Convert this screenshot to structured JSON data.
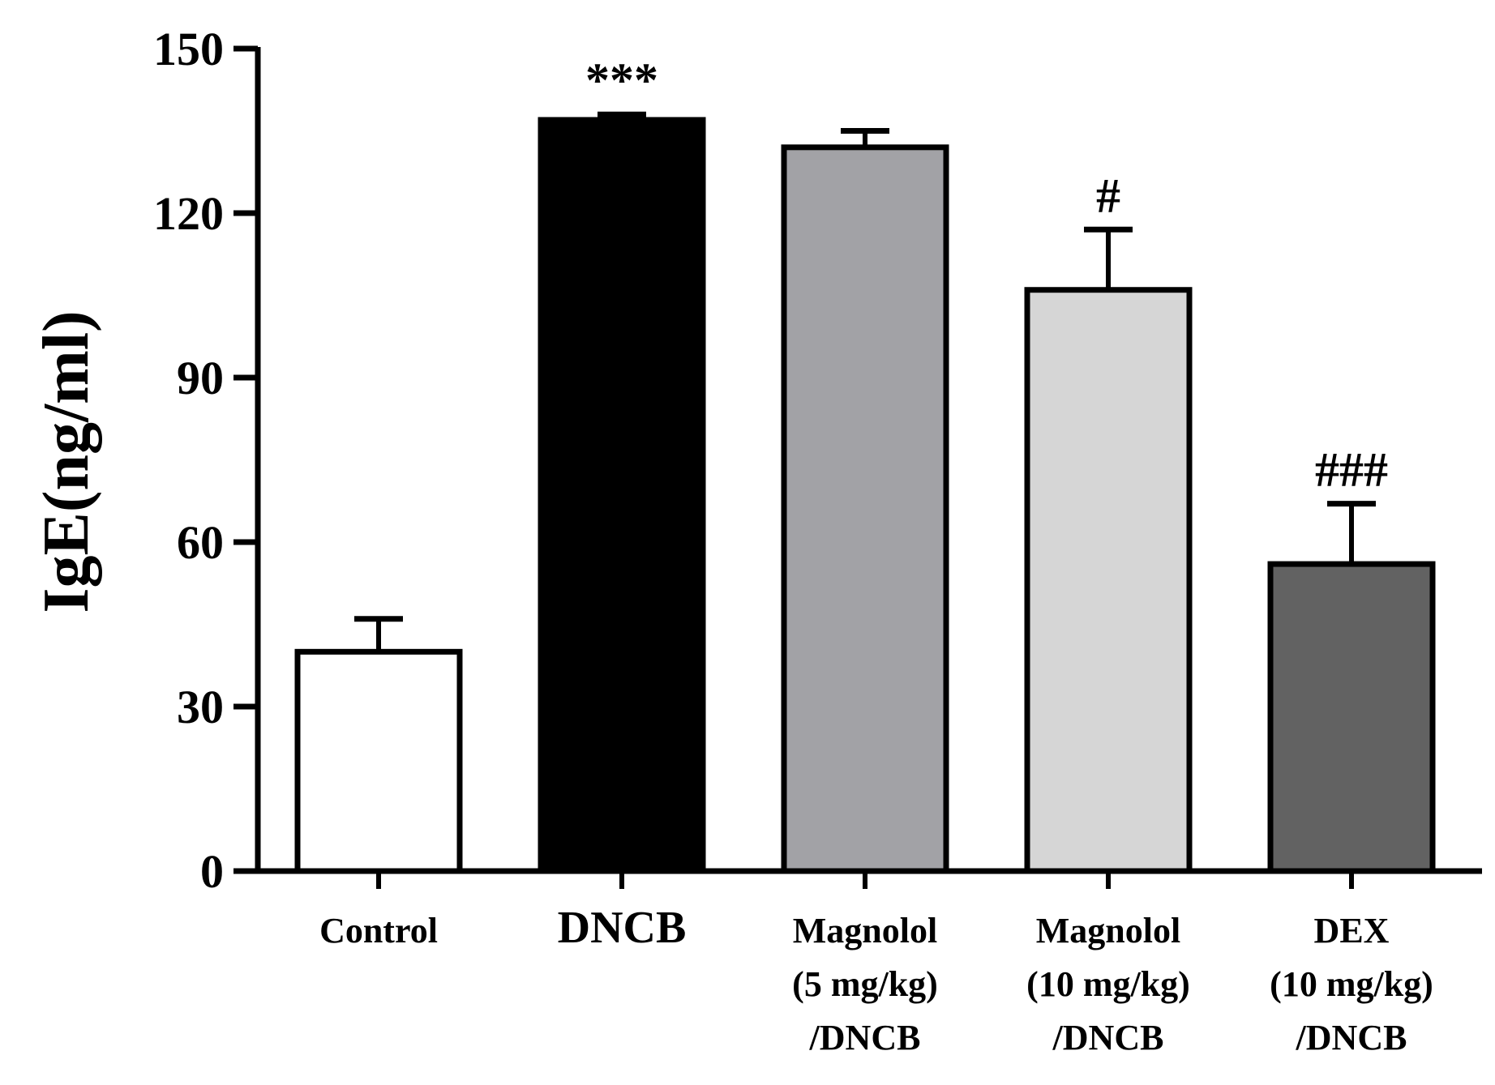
{
  "chart_data": {
    "type": "bar",
    "title": "",
    "xlabel": "",
    "ylabel": "IgE(ng/ml)",
    "ylim": [
      0,
      150
    ],
    "yticks": [
      "0",
      "30",
      "60",
      "90",
      "120",
      "150"
    ],
    "categories": [
      [
        "Control"
      ],
      [
        "DNCB"
      ],
      [
        "Magnolol",
        "(5 mg/kg)",
        "/DNCB"
      ],
      [
        "Magnolol",
        "(10 mg/kg)",
        "/DNCB"
      ],
      [
        "DEX",
        "(10 mg/kg)",
        "/DNCB"
      ]
    ],
    "values": [
      40,
      137,
      132,
      106,
      56
    ],
    "errors": [
      6,
      1,
      3,
      11,
      11
    ],
    "bar_colors": [
      "#ffffff",
      "#000000",
      "#a2a2a6",
      "#d6d6d6",
      "#626262"
    ],
    "annotations": [
      "",
      "***",
      "",
      "#",
      "###"
    ]
  }
}
